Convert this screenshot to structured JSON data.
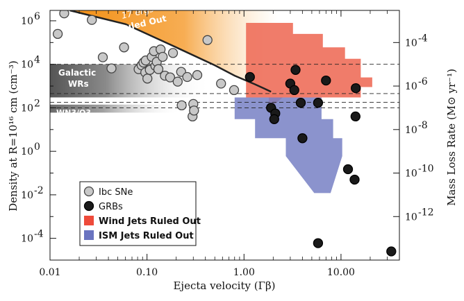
{
  "chart_data": {
    "type": "scatter",
    "x_scale": "log",
    "y_scale": "log",
    "xlim": [
      0.01,
      40
    ],
    "ylim": [
      1e-05,
      3000000.0
    ],
    "xlabel": "Ejecta velocity (Γβ)",
    "ylabel": "Density at R=10¹⁶ cm (cm⁻³)",
    "ylabel_right": "Mass Loss Rate (M⊙ yr⁻¹)",
    "x_ticks": [
      {
        "value": 0.01,
        "label": "0.01"
      },
      {
        "value": 0.1,
        "label": "0.10"
      },
      {
        "value": 1,
        "label": "1.00"
      },
      {
        "value": 10,
        "label": "10.00"
      }
    ],
    "y_ticks": [
      {
        "value": 1000000.0,
        "base": "10",
        "exp": "6"
      },
      {
        "value": 10000.0,
        "base": "10",
        "exp": "4"
      },
      {
        "value": 100.0,
        "base": "10",
        "exp": "2"
      },
      {
        "value": 1,
        "base": "10",
        "exp": "0"
      },
      {
        "value": 0.01,
        "base": "10",
        "exp": "-2"
      },
      {
        "value": 0.0001,
        "base": "10",
        "exp": "-4"
      }
    ],
    "y2_ticks": [
      {
        "density": 100000.0,
        "base": "10",
        "exp": "-4"
      },
      {
        "density": 1000.0,
        "base": "10",
        "exp": "-6"
      },
      {
        "density": 10,
        "base": "10",
        "exp": "-8"
      },
      {
        "density": 0.1,
        "base": "10",
        "exp": "-10"
      },
      {
        "density": 0.001,
        "base": "10",
        "exp": "-12"
      }
    ],
    "series": [
      {
        "name": "Ibc SNe",
        "color": "#c8c8c8",
        "points": [
          [
            0.014,
            2200000.0
          ],
          [
            0.012,
            250000.0
          ],
          [
            0.027,
            1100000.0
          ],
          [
            0.035,
            21000.0
          ],
          [
            0.058,
            60000.0
          ],
          [
            0.043,
            6500.0
          ],
          [
            0.082,
            6000.0
          ],
          [
            0.088,
            9000.0
          ],
          [
            0.092,
            12000.0
          ],
          [
            0.096,
            4200.0
          ],
          [
            0.101,
            2200.0
          ],
          [
            0.097,
            15000.0
          ],
          [
            0.107,
            5500.0
          ],
          [
            0.112,
            22000.0
          ],
          [
            0.118,
            40000.0
          ],
          [
            0.122,
            8500.0
          ],
          [
            0.126,
            13000.0
          ],
          [
            0.131,
            6000.0
          ],
          [
            0.138,
            48000.0
          ],
          [
            0.145,
            22000.0
          ],
          [
            0.153,
            3000.0
          ],
          [
            0.173,
            2500.0
          ],
          [
            0.185,
            33000.0
          ],
          [
            0.207,
            1600.0
          ],
          [
            0.225,
            4500.0
          ],
          [
            0.228,
            130.0
          ],
          [
            0.26,
            2600.0
          ],
          [
            0.3,
            150.0
          ],
          [
            0.295,
            40
          ],
          [
            0.305,
            75
          ],
          [
            0.33,
            3200.0
          ],
          [
            0.42,
            130000.0
          ],
          [
            0.58,
            1300.0
          ],
          [
            0.79,
            650
          ]
        ]
      },
      {
        "name": "GRBs",
        "color": "#1a1a1a",
        "points": [
          [
            1.15,
            2600.0
          ],
          [
            1.9,
            100
          ],
          [
            2.1,
            55
          ],
          [
            2.05,
            30
          ],
          [
            3.0,
            1300.0
          ],
          [
            3.3,
            650
          ],
          [
            3.4,
            5500.0
          ],
          [
            3.85,
            170
          ],
          [
            4.0,
            4
          ],
          [
            5.8,
            170
          ],
          [
            7.0,
            1800.0
          ],
          [
            5.8,
            6e-05
          ],
          [
            11.8,
            0.15
          ],
          [
            13.8,
            0.05
          ],
          [
            14.2,
            800
          ],
          [
            14.1,
            40
          ],
          [
            33,
            2.5e-05
          ]
        ]
      }
    ],
    "shaded_regions": [
      {
        "name": "Wind Jets Ruled Out",
        "color": "#ee6a55"
      },
      {
        "name": "ISM Jets Ruled Out",
        "color": "#7780c4"
      },
      {
        "name": "17 ergs Ruled Out",
        "color": "#f4991e"
      }
    ],
    "reference_bands": [
      {
        "name": "Galactic WRs",
        "density_range": [
          300,
          10000
        ]
      },
      {
        "name": "WN3/O3",
        "density_range": [
          60,
          140
        ]
      }
    ],
    "boundary_curve": [
      [
        0.016,
        3000000.0
      ],
      [
        0.06,
        700000.0
      ],
      [
        0.2,
        60000.0
      ],
      [
        0.5,
        9000.0
      ],
      [
        0.8,
        3000.0
      ],
      [
        1.3,
        1200.0
      ],
      [
        1.9,
        550
      ]
    ],
    "dashed_lines": [
      10000.0,
      450,
      180,
      100
    ],
    "annotations": {
      "ruled_out_line1": "17 ergs",
      "ruled_out_line2": "Ruled Out",
      "galactic_line1": "Galactic",
      "galactic_line2": "WRs",
      "wn3": "WN3/O3"
    },
    "legend": {
      "placement": "lower-left",
      "entries": [
        {
          "label": "Ibc SNe",
          "color": "#c8c8c8",
          "text_color": "#111111"
        },
        {
          "label": "GRBs",
          "color": "#1a1a1a",
          "text_color": "#111111"
        },
        {
          "label": "Wind Jets Ruled Out",
          "color": "#ee4a3a",
          "text_color": "#e03020"
        },
        {
          "label": "ISM Jets Ruled Out",
          "color": "#6a74c0",
          "text_color": "#3b48b0"
        }
      ]
    }
  }
}
